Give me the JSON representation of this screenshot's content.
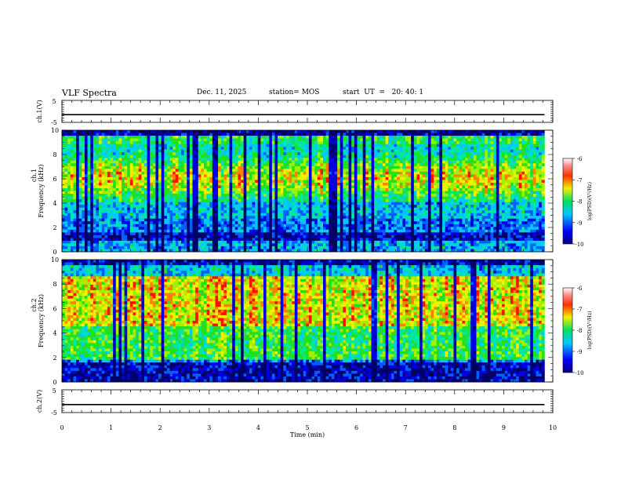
{
  "header": {
    "title": "VLF Spectra",
    "date": "Dec. 11, 2025",
    "station": "station= MOS",
    "start": "start  UT  =   20: 40: 1"
  },
  "chart_data": [
    {
      "type": "line",
      "panel": "ch1-waveform",
      "ylabel": "ch.1(V)",
      "yticks": [
        "5",
        "-5"
      ],
      "ylim": [
        -5,
        5
      ],
      "level": -1.5
    },
    {
      "type": "heatmap",
      "panel": "ch1-spectrogram",
      "ylabel_top": "ch.1",
      "ylabel": "Frequency (kHz)",
      "ylim": [
        0,
        10
      ],
      "yticks": [
        "0",
        "2",
        "4",
        "6",
        "8",
        "10"
      ],
      "xlim": [
        0,
        10
      ],
      "data_end_min": 9.83,
      "colorbar": {
        "label": "log(PSD)(V²/Hz)",
        "ticks": [
          "-6",
          "-7",
          "-8",
          "-9",
          "-10"
        ],
        "range": [
          -10,
          -6
        ]
      }
    },
    {
      "type": "heatmap",
      "panel": "ch2-spectrogram",
      "ylabel_top": "ch.2",
      "ylabel": "Frequency (kHz)",
      "ylim": [
        0,
        10
      ],
      "yticks": [
        "0",
        "2",
        "4",
        "6",
        "8",
        "10"
      ],
      "xlim": [
        0,
        10
      ],
      "data_end_min": 9.83,
      "colorbar": {
        "label": "log(PSD)(V²/Hz)",
        "ticks": [
          "-6",
          "-7",
          "-8",
          "-9",
          "-10"
        ],
        "range": [
          -10,
          -6
        ]
      }
    },
    {
      "type": "line",
      "panel": "ch2-waveform",
      "ylabel": "ch.2(V)",
      "yticks": [
        "5",
        "-5"
      ],
      "ylim": [
        -5,
        5
      ],
      "level": -1.5
    }
  ],
  "xaxis": {
    "label": "Time (min)",
    "ticks": [
      "0",
      "1",
      "2",
      "3",
      "4",
      "5",
      "6",
      "7",
      "8",
      "9",
      "10"
    ]
  }
}
